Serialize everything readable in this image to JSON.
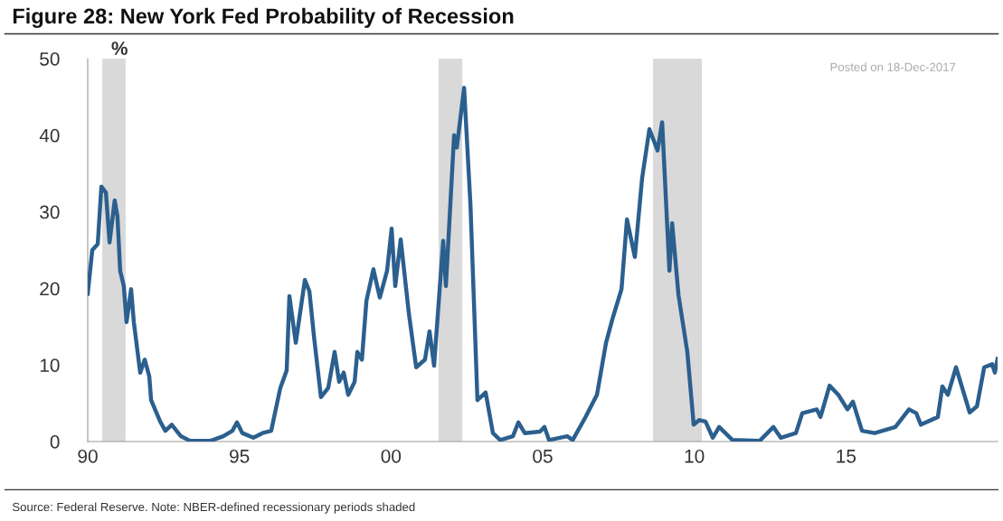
{
  "chart_data": {
    "type": "line",
    "title": "Figure 28: New York Fed Probability of Recession",
    "ylabel": "%",
    "annotations": [
      "Posted on 18-Dec-2017",
      "Source: Federal Reserve. Note: NBER-defined recessionary periods shaded"
    ],
    "series": [
      {
        "color": "#2b5f8e",
        "x": [
          1990.0,
          1990.15,
          1990.33,
          1990.45,
          1990.6,
          1990.72,
          1990.89,
          1990.98,
          1991.07,
          1991.19,
          1991.28,
          1991.43,
          1991.52,
          1991.73,
          1991.88,
          1992.03,
          1992.09,
          1992.39,
          1992.56,
          1992.77,
          1993.07,
          1993.37,
          1994.06,
          1994.47,
          1994.77,
          1994.92,
          1995.1,
          1995.46,
          1995.76,
          1996.05,
          1996.14,
          1996.35,
          1996.56,
          1996.65,
          1996.86,
          1997.16,
          1997.31,
          1997.46,
          1997.69,
          1997.93,
          1998.14,
          1998.29,
          1998.44,
          1998.59,
          1998.8,
          1998.89,
          1999.04,
          1999.19,
          1999.42,
          1999.63,
          1999.87,
          2000.02,
          2000.14,
          2000.32,
          2000.59,
          2000.83,
          2001.12,
          2001.27,
          2001.42,
          2001.72,
          2001.81,
          2002.08,
          2002.17,
          2002.41,
          2002.62,
          2002.85,
          2003.12,
          2003.36,
          2003.6,
          2004.02,
          2004.2,
          2004.41,
          2004.91,
          2005.06,
          2005.21,
          2005.81,
          2005.99,
          2006.4,
          2006.79,
          2007.09,
          2007.3,
          2007.6,
          2007.78,
          2008.04,
          2008.28,
          2008.52,
          2008.79,
          2008.94,
          2009.18,
          2009.27,
          2009.48,
          2009.77,
          2009.98,
          2010.16,
          2010.37,
          2010.61,
          2010.82,
          2011.26,
          2012.16,
          2012.61,
          2012.85,
          2013.35,
          2013.56,
          2014.04,
          2014.16,
          2014.46,
          2014.75,
          2015.05,
          2015.23,
          2015.53,
          2015.95,
          2016.63,
          2017.08,
          2017.32,
          2017.47,
          2018.03,
          2018.18,
          2018.36,
          2018.63,
          2019.08,
          2019.32,
          2019.56,
          2019.82,
          2019.91,
          2020.0
        ],
        "values": [
          19.3,
          25,
          25.8,
          33.3,
          32.5,
          26,
          31.5,
          29.4,
          22.3,
          20.3,
          15.6,
          19.9,
          15.6,
          9,
          10.7,
          8.5,
          5.4,
          2.6,
          1.4,
          2.2,
          0.7,
          0.1,
          0.1,
          0.7,
          1.4,
          2.5,
          1.1,
          0.5,
          1.1,
          1.4,
          3.1,
          7,
          9.3,
          19,
          12.9,
          21.1,
          19.6,
          13.7,
          5.8,
          7,
          11.7,
          7.8,
          9,
          6.1,
          7.8,
          11.7,
          10.7,
          18.4,
          22.5,
          18.8,
          22.3,
          27.8,
          20.3,
          26.4,
          16.7,
          9.7,
          10.7,
          14.4,
          9.9,
          26.2,
          20.3,
          40,
          38.4,
          46.2,
          30.9,
          5.4,
          6.4,
          1.1,
          0.2,
          0.7,
          2.5,
          1.1,
          1.3,
          1.9,
          0.2,
          0.7,
          0.2,
          3.1,
          6.1,
          12.9,
          16,
          19.9,
          29,
          24.1,
          34.4,
          40.8,
          38,
          41.7,
          22.3,
          28.5,
          19.1,
          11.7,
          2.2,
          2.8,
          2.6,
          0.5,
          1.9,
          0.2,
          0.1,
          1.9,
          0.5,
          1.1,
          3.7,
          4.2,
          3.2,
          7.3,
          6.1,
          4.2,
          5.2,
          1.4,
          1.1,
          1.9,
          4.2,
          3.7,
          2.2,
          3.2,
          7.2,
          6.1,
          9.7,
          3.8,
          4.6,
          9.7,
          10.1,
          9,
          10.8
        ]
      }
    ],
    "bands": [
      {
        "axis": "x",
        "from": 1990.48,
        "to": 1991.25,
        "color": "#d9d9d9"
      },
      {
        "axis": "x",
        "from": 2001.57,
        "to": 2002.35,
        "color": "#d9d9d9"
      },
      {
        "axis": "x",
        "from": 2008.64,
        "to": 2010.25,
        "color": "#d9d9d9"
      }
    ],
    "xlim": [
      1990,
      2020
    ],
    "xticks": [
      {
        "value": 1990,
        "label": "90"
      },
      {
        "value": 1995,
        "label": "95"
      },
      {
        "value": 2000,
        "label": "00"
      },
      {
        "value": 2005,
        "label": "05"
      },
      {
        "value": 2010,
        "label": "10"
      },
      {
        "value": 2015,
        "label": "15"
      }
    ],
    "ylim": [
      0,
      50
    ],
    "yticks": [
      0,
      10,
      20,
      30,
      40,
      50
    ]
  }
}
